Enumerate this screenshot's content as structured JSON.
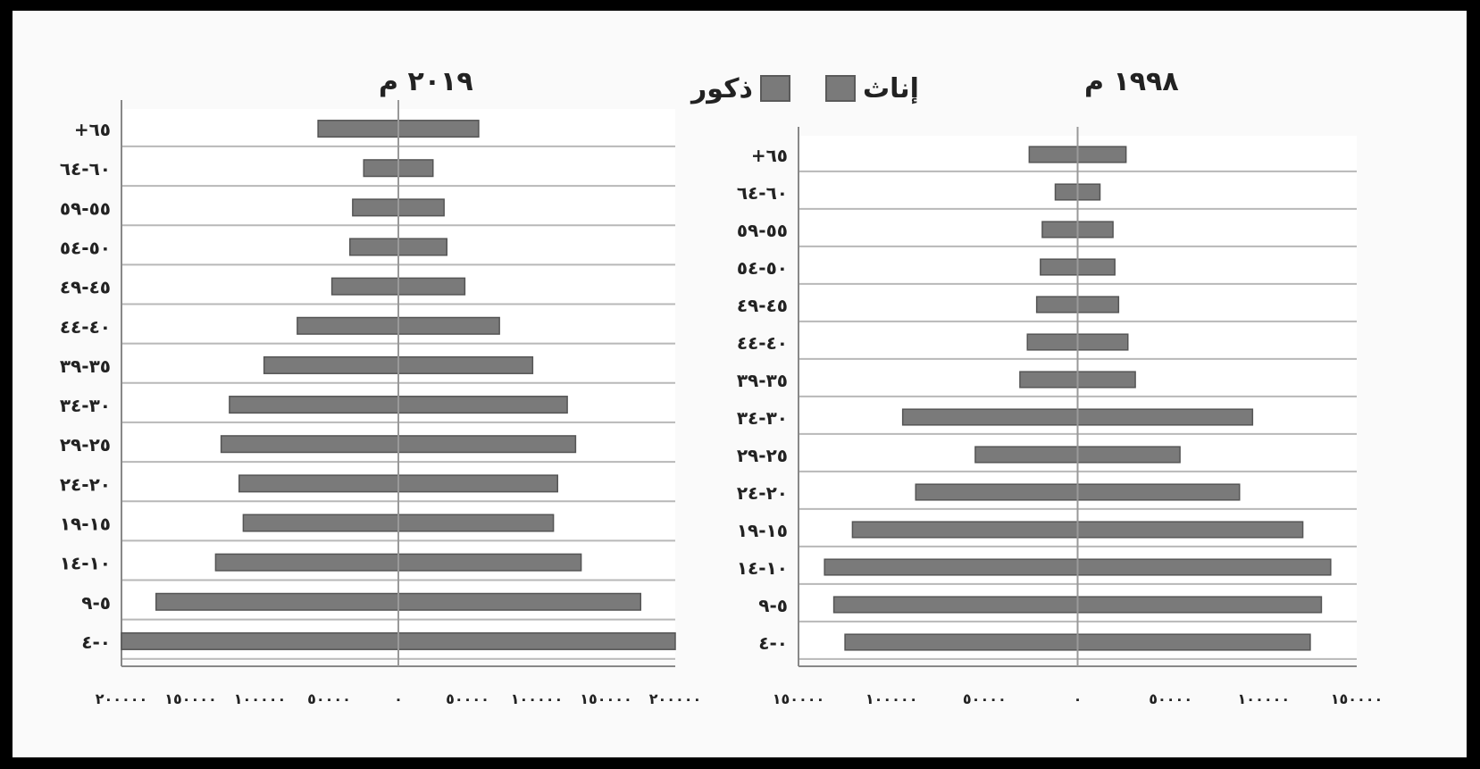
{
  "legend": {
    "female_label": "إناث",
    "male_label": "ذكور"
  },
  "colors": {
    "bar": "#7a7a7a",
    "bar_stroke": "#555555",
    "grid": "#b8b8b8",
    "axis": "#888888",
    "text": "#222222"
  },
  "chart_data": [
    {
      "type": "bar",
      "title": "٢٠١٩ م",
      "categories": [
        "٠-٤",
        "٥-٩",
        "١٠-١٤",
        "١٥-١٩",
        "٢٠-٢٤",
        "٢٥-٢٩",
        "٣٠-٣٤",
        "٣٥-٣٩",
        "٤٠-٤٤",
        "٤٥-٤٩",
        "٥٠-٥٤",
        "٥٥-٥٩",
        "٦٠-٦٤",
        "+٦٥"
      ],
      "series": [
        {
          "name": "ذكور",
          "values": [
            200000,
            175000,
            132000,
            112000,
            115000,
            128000,
            122000,
            97000,
            73000,
            48000,
            35000,
            33000,
            25000,
            58000
          ]
        },
        {
          "name": "إناث",
          "values": [
            200000,
            175000,
            132000,
            112000,
            115000,
            128000,
            122000,
            97000,
            73000,
            48000,
            35000,
            33000,
            25000,
            58000
          ]
        }
      ],
      "xlim": [
        -200000,
        200000
      ],
      "xtick_values": [
        -200000,
        -150000,
        -100000,
        -50000,
        0,
        50000,
        100000,
        150000,
        200000
      ],
      "xtick_labels": [
        "٢٠٠٠٠٠",
        "١٥٠٠٠٠",
        "١٠٠٠٠٠",
        "٥٠٠٠٠",
        "٠",
        "٥٠٠٠٠",
        "١٠٠٠٠٠",
        "١٥٠٠٠٠",
        "٢٠٠٠٠٠"
      ]
    },
    {
      "type": "bar",
      "title": "١٩٩٨ م",
      "categories": [
        "٠-٤",
        "٥-٩",
        "١٠-١٤",
        "١٥-١٩",
        "٢٠-٢٤",
        "٢٥-٢٩",
        "٣٠-٣٤",
        "٣٥-٣٩",
        "٤٠-٤٤",
        "٤٥-٤٩",
        "٥٠-٥٤",
        "٥٥-٥٩",
        "٦٠-٦٤",
        "+٦٥"
      ],
      "series": [
        {
          "name": "ذكور",
          "values": [
            125000,
            131000,
            136000,
            121000,
            87000,
            55000,
            94000,
            31000,
            27000,
            22000,
            20000,
            19000,
            12000,
            26000
          ]
        },
        {
          "name": "إناث",
          "values": [
            125000,
            131000,
            136000,
            121000,
            87000,
            55000,
            94000,
            31000,
            27000,
            22000,
            20000,
            19000,
            12000,
            26000
          ]
        }
      ],
      "xlim": [
        -150000,
        150000
      ],
      "xtick_values": [
        -150000,
        -100000,
        -50000,
        0,
        50000,
        100000,
        150000
      ],
      "xtick_labels": [
        "١٥٠٠٠٠",
        "١٠٠٠٠٠",
        "٥٠٠٠٠",
        "٠",
        "٥٠٠٠٠",
        "١٠٠٠٠٠",
        "١٥٠٠٠٠"
      ]
    }
  ]
}
